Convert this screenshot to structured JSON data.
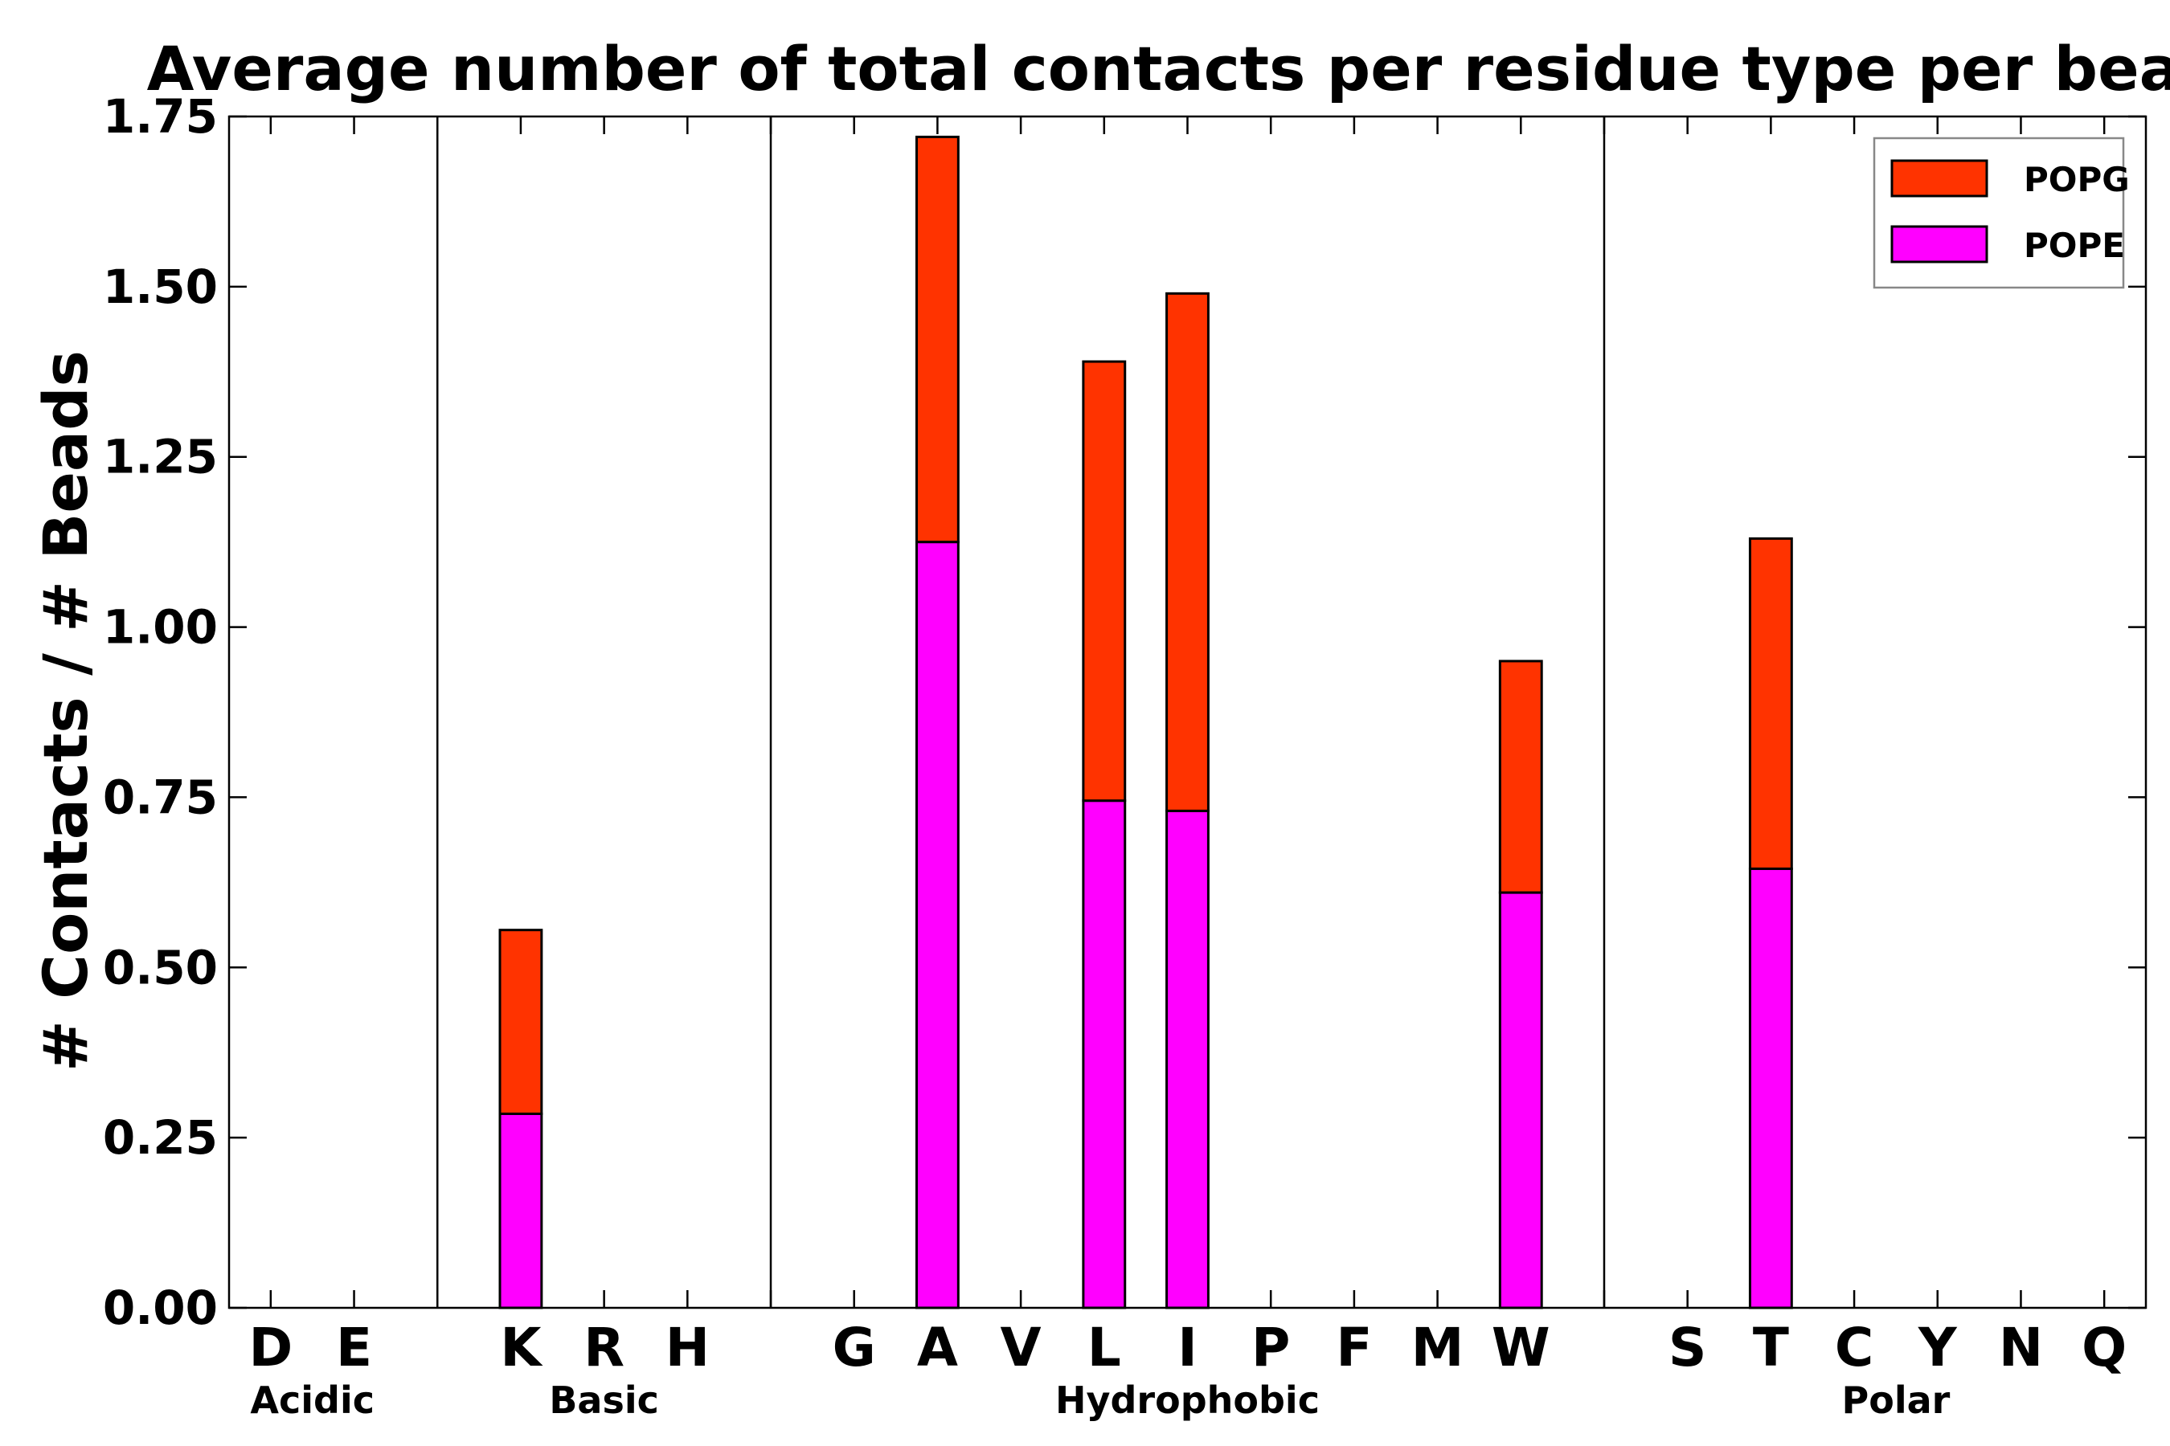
{
  "chart_data": {
    "type": "bar",
    "stacked": true,
    "title": "Average number of total contacts per residue type per bead",
    "xlabel": "",
    "ylabel": "# Contacts / # Beads",
    "ylim": [
      0,
      1.75
    ],
    "yticks": [
      "0.00",
      "0.25",
      "0.50",
      "0.75",
      "1.00",
      "1.25",
      "1.50",
      "1.75"
    ],
    "categories": [
      "D",
      "E",
      "",
      "K",
      "R",
      "H",
      "",
      "G",
      "A",
      "V",
      "L",
      "I",
      "P",
      "F",
      "M",
      "W",
      "",
      "S",
      "T",
      "C",
      "Y",
      "N",
      "Q"
    ],
    "series": [
      {
        "name": "POPE",
        "color": "#ff00ff",
        "values": [
          0,
          0,
          0,
          0.285,
          0,
          0,
          0,
          0,
          1.125,
          0,
          0.745,
          0.73,
          0,
          0,
          0,
          0.61,
          0,
          0,
          0.645,
          0,
          0,
          0,
          0
        ]
      },
      {
        "name": "POPG",
        "color": "#ff3300",
        "values": [
          0,
          0,
          0,
          0.27,
          0,
          0,
          0,
          0,
          0.595,
          0,
          0.645,
          0.76,
          0,
          0,
          0,
          0.34,
          0,
          0,
          0.485,
          0,
          0,
          0,
          0
        ]
      }
    ],
    "groups": [
      {
        "label": "Acidic",
        "members": [
          "D",
          "E"
        ]
      },
      {
        "label": "Basic",
        "members": [
          "K",
          "R",
          "H"
        ]
      },
      {
        "label": "Hydrophobic",
        "members": [
          "G",
          "A",
          "V",
          "L",
          "I",
          "P",
          "F",
          "M",
          "W"
        ]
      },
      {
        "label": "Polar",
        "members": [
          "S",
          "T",
          "C",
          "Y",
          "N",
          "Q"
        ]
      }
    ],
    "legend": {
      "placement": "top-right",
      "entries": [
        {
          "label": "POPG",
          "color": "#ff3300"
        },
        {
          "label": "POPE",
          "color": "#ff00ff"
        }
      ]
    }
  }
}
